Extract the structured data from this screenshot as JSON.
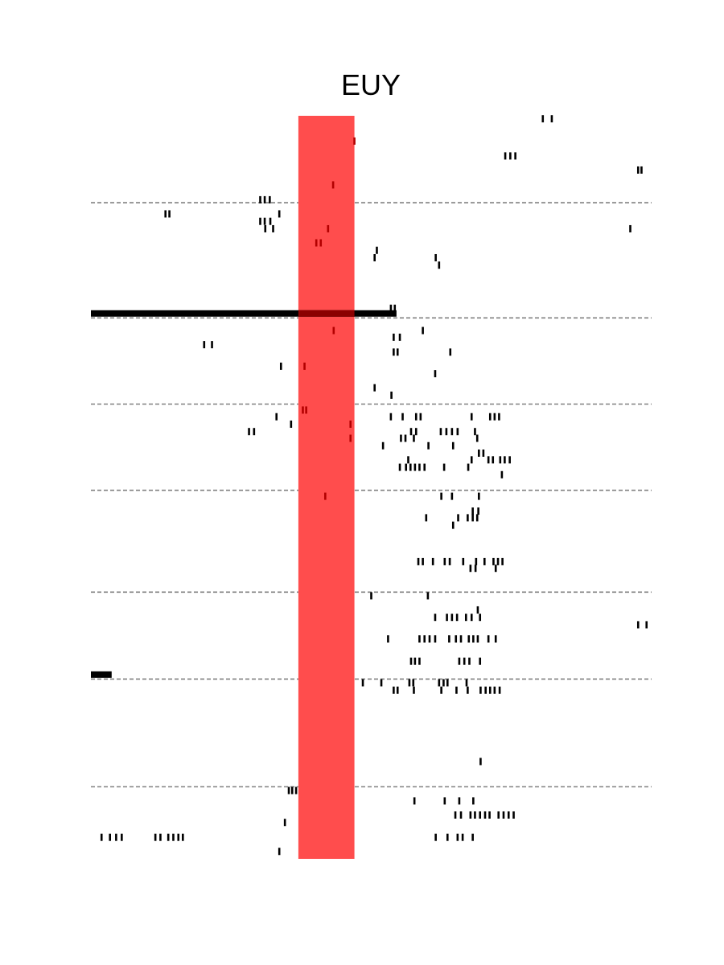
{
  "chart_data": {
    "type": "scatter",
    "subtype": "spike-raster",
    "title": "EUY",
    "xlabel": "",
    "ylabel": "",
    "xlim": [
      0,
      100
    ],
    "ylim": [
      0,
      100
    ],
    "grid": false,
    "legend": "none",
    "stimulus_window": {
      "x_start": 37,
      "x_end": 47,
      "color": "#ff4d4d"
    },
    "separator_lines": [
      11.7,
      27.2,
      38.8,
      50.4,
      64.1,
      75.8,
      90.3
    ],
    "thick_bars": [
      {
        "x_start": 0,
        "x_end": 54.5,
        "y": 26.6
      },
      {
        "x_start": 0,
        "x_end": 3.7,
        "y": 75.2
      }
    ],
    "trials": [
      {
        "y": 0.4,
        "x": [
          80.6,
          82.2
        ]
      },
      {
        "y": 3.4,
        "x": [
          47.0
        ]
      },
      {
        "y": 5.4,
        "x": [
          73.9,
          74.8,
          75.7
        ]
      },
      {
        "y": 7.3,
        "x": [
          97.6,
          98.2
        ]
      },
      {
        "y": 9.3,
        "x": [
          43.2
        ]
      },
      {
        "y": 11.3,
        "x": [
          30.2,
          31.0,
          31.9
        ]
      },
      {
        "y": 13.2,
        "x": [
          13.3,
          14.0,
          33.6
        ]
      },
      {
        "y": 14.2,
        "x": [
          30.2,
          31.0,
          32.0
        ]
      },
      {
        "y": 15.2,
        "x": [
          31.1,
          32.5,
          42.3,
          96.2
        ]
      },
      {
        "y": 17.1,
        "x": [
          40.2,
          41.0
        ]
      },
      {
        "y": 18.1,
        "x": [
          51.0
        ]
      },
      {
        "y": 19.1,
        "x": [
          50.6,
          61.5
        ]
      },
      {
        "y": 20.1,
        "x": [
          62.1
        ]
      },
      {
        "y": 25.9,
        "x": [
          53.5,
          54.2
        ]
      },
      {
        "y": 28.9,
        "x": [
          43.3,
          59.2
        ]
      },
      {
        "y": 29.8,
        "x": [
          54.0,
          55.1
        ]
      },
      {
        "y": 30.8,
        "x": [
          20.2,
          21.6
        ]
      },
      {
        "y": 31.8,
        "x": [
          54.0,
          54.7,
          64.1
        ]
      },
      {
        "y": 33.7,
        "x": [
          33.9,
          38.1
        ]
      },
      {
        "y": 34.7,
        "x": [
          61.4
        ]
      },
      {
        "y": 36.6,
        "x": [
          50.6
        ]
      },
      {
        "y": 37.6,
        "x": [
          53.6
        ]
      },
      {
        "y": 39.6,
        "x": [
          37.8,
          38.4
        ]
      },
      {
        "y": 40.5,
        "x": [
          33.1,
          53.5,
          55.6,
          58.0,
          58.8,
          67.9,
          71.2,
          72.0,
          72.8
        ]
      },
      {
        "y": 41.5,
        "x": [
          35.7,
          46.3
        ]
      },
      {
        "y": 42.5,
        "x": [
          28.2,
          29.1,
          57.1,
          58.0,
          62.4,
          63.4,
          64.4,
          65.4,
          68.5
        ]
      },
      {
        "y": 43.4,
        "x": [
          46.3,
          55.3,
          56.1,
          57.6,
          68.9
        ]
      },
      {
        "y": 44.4,
        "x": [
          52.1,
          60.2,
          64.6
        ]
      },
      {
        "y": 45.4,
        "x": [
          69.2,
          70.0
        ]
      },
      {
        "y": 46.3,
        "x": [
          56.6,
          67.9,
          70.9,
          71.7,
          73.0,
          73.8,
          74.7
        ]
      },
      {
        "y": 47.3,
        "x": [
          55.1,
          56.2,
          57.0,
          57.8,
          58.6,
          59.5,
          63.0,
          67.3
        ]
      },
      {
        "y": 48.3,
        "x": [
          73.3
        ]
      },
      {
        "y": 51.2,
        "x": [
          41.8,
          62.5,
          64.4,
          69.2
        ]
      },
      {
        "y": 53.2,
        "x": [
          68.1,
          69.1
        ]
      },
      {
        "y": 54.1,
        "x": [
          59.8,
          65.5,
          67.2,
          68.1,
          68.9
        ]
      },
      {
        "y": 55.1,
        "x": [
          64.6
        ]
      },
      {
        "y": 60.0,
        "x": [
          58.4,
          59.2,
          61.0,
          63.1,
          64.0,
          66.4,
          68.7,
          70.2,
          71.8,
          72.6,
          73.4
        ]
      },
      {
        "y": 60.9,
        "x": [
          67.7,
          68.6,
          72.2
        ]
      },
      {
        "y": 64.6,
        "x": [
          50.0,
          60.1
        ]
      },
      {
        "y": 66.5,
        "x": [
          69.0
        ]
      },
      {
        "y": 67.5,
        "x": [
          61.4,
          63.5,
          64.4,
          65.3,
          66.9,
          67.9,
          69.4
        ]
      },
      {
        "y": 68.5,
        "x": [
          97.6,
          99.1
        ]
      },
      {
        "y": 70.4,
        "x": [
          53.0,
          58.6,
          59.5,
          60.4,
          61.4,
          63.9,
          65.1,
          66.0,
          67.4,
          68.2,
          69.0,
          70.9,
          72.2
        ]
      },
      {
        "y": 73.4,
        "x": [
          57.1,
          57.8,
          58.6,
          65.7,
          66.6,
          67.5,
          69.4
        ]
      },
      {
        "y": 76.3,
        "x": [
          48.5,
          51.8,
          56.8,
          57.5,
          62.1,
          62.9,
          63.6,
          67.0
        ]
      },
      {
        "y": 77.3,
        "x": [
          54.0,
          54.7,
          57.6,
          62.5,
          65.2,
          67.2,
          69.5,
          70.4,
          71.2,
          72.0,
          72.9
        ]
      },
      {
        "y": 86.9,
        "x": [
          69.5
        ]
      },
      {
        "y": 90.8,
        "x": [
          35.3,
          35.9,
          36.6
        ]
      },
      {
        "y": 92.2,
        "x": [
          57.7,
          63.1,
          65.7,
          68.2
        ]
      },
      {
        "y": 94.1,
        "x": [
          65.0,
          66.0,
          67.7,
          68.5,
          69.4,
          70.3,
          71.1,
          72.7,
          73.6,
          74.5,
          75.4
        ]
      },
      {
        "y": 95.1,
        "x": [
          34.6
        ]
      },
      {
        "y": 97.1,
        "x": [
          1.9,
          3.4,
          4.5,
          5.5,
          11.5,
          12.4,
          13.8,
          14.7,
          15.6,
          16.4,
          61.5,
          63.6,
          65.4,
          66.3,
          68.1
        ]
      },
      {
        "y": 99.0,
        "x": [
          33.6
        ]
      }
    ]
  }
}
